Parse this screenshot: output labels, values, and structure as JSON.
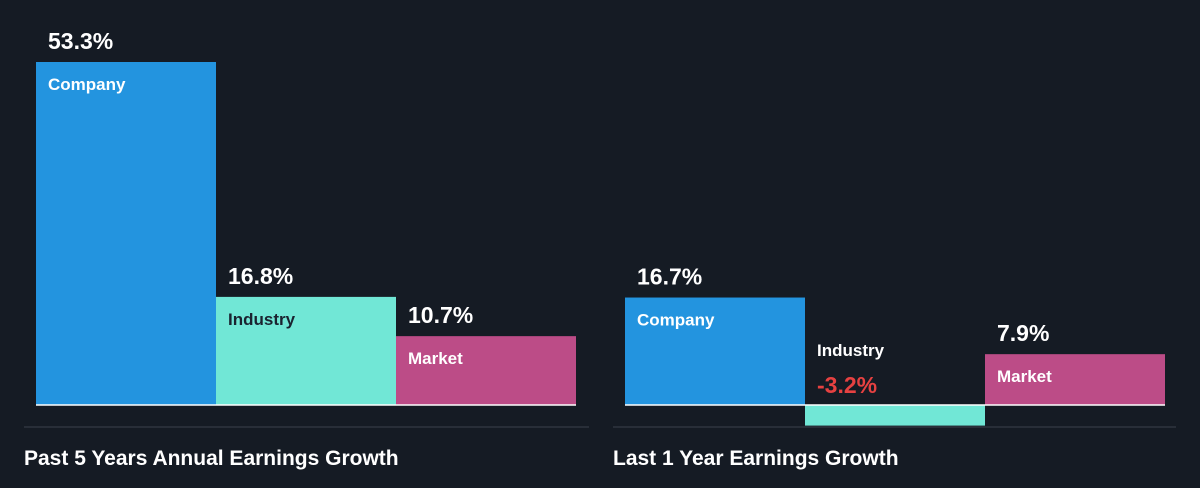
{
  "chart_data": [
    {
      "type": "bar",
      "title": "Past 5 Years Annual Earnings Growth",
      "categories": [
        "Company",
        "Industry",
        "Market"
      ],
      "values": [
        53.3,
        16.8,
        10.7
      ],
      "value_labels": [
        "53.3%",
        "16.8%",
        "10.7%"
      ],
      "unit": "%",
      "colors": [
        "#2394df",
        "#71e7d6",
        "#bc4c87"
      ],
      "ylim": [
        0,
        53.3
      ],
      "grid": false
    },
    {
      "type": "bar",
      "title": "Last 1 Year Earnings Growth",
      "categories": [
        "Company",
        "Industry",
        "Market"
      ],
      "values": [
        16.7,
        -3.2,
        7.9
      ],
      "value_labels": [
        "16.7%",
        "-3.2%",
        "7.9%"
      ],
      "unit": "%",
      "colors": [
        "#2394df",
        "#71e7d6",
        "#bc4c87"
      ],
      "ylim": [
        -3.2,
        53.3
      ],
      "grid": false
    }
  ],
  "colors": {
    "background": "#151b24",
    "text": "#ffffff",
    "label_dark": "#1a2330",
    "negative": "#e64141",
    "divider": "#3a414c",
    "baseline": "#ffffff"
  }
}
